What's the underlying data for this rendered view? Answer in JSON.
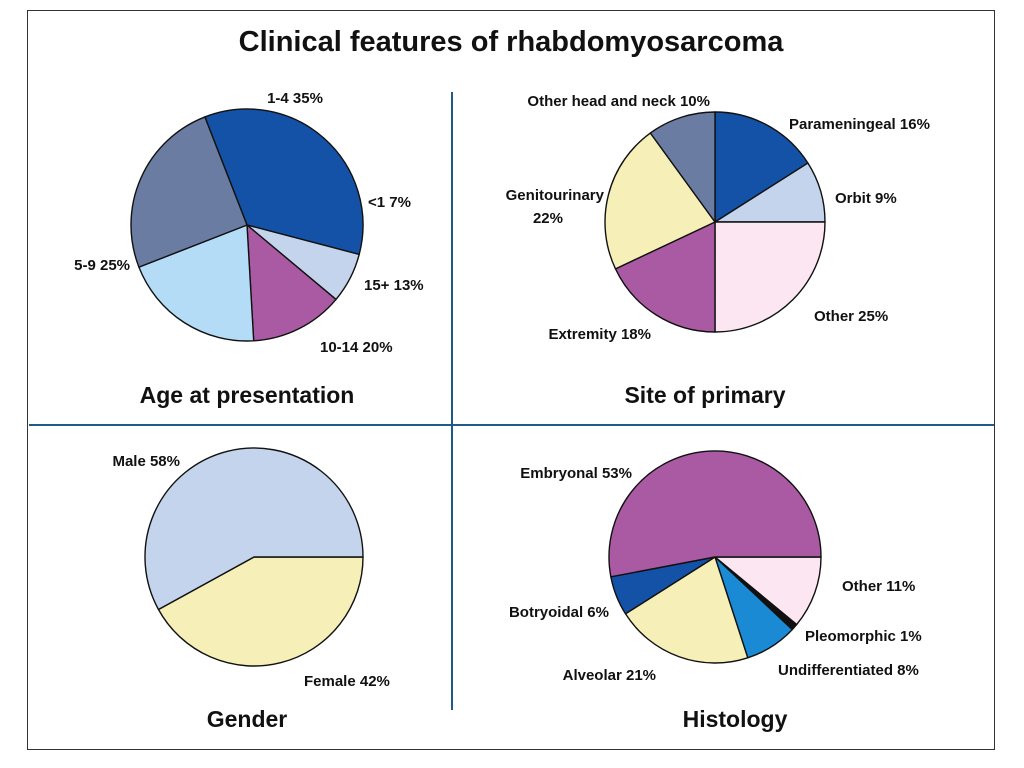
{
  "title": "Clinical features of rhabdomyosarcoma",
  "chart_data": [
    {
      "type": "pie",
      "title": "Age at presentation",
      "start_angle": -111.3,
      "slices": [
        {
          "label": "1-4",
          "value": 35,
          "text": "1-4  35%",
          "color": "#1452a8"
        },
        {
          "label": "<1",
          "value": 7,
          "text": "<1  7%",
          "color": "#c3d4ec"
        },
        {
          "label": "15+",
          "value": 13,
          "text": "15+  13%",
          "color": "#a95aa3"
        },
        {
          "label": "10-14",
          "value": 20,
          "text": "10-14  20%",
          "color": "#b4dcf6"
        },
        {
          "label": "5-9",
          "value": 25,
          "text": "5-9  25%",
          "color": "#6a7ca2"
        }
      ]
    },
    {
      "type": "pie",
      "title": "Site of primary",
      "start_angle": -90,
      "slices": [
        {
          "label": "Parameningeal",
          "value": 16,
          "text": "Parameningeal  16%",
          "color": "#1452a8"
        },
        {
          "label": "Orbit",
          "value": 9,
          "text": "Orbit 9%",
          "color": "#c3d4ec"
        },
        {
          "label": "Other",
          "value": 25,
          "text": "Other  25%",
          "color": "#fbe6f2"
        },
        {
          "label": "Extremity",
          "value": 18,
          "text": "Extremity  18%",
          "color": "#a95aa3"
        },
        {
          "label": "Genitourinary",
          "value": 22,
          "text": [
            "Genitourinary",
            "22%"
          ],
          "color": "#f6f0b8"
        },
        {
          "label": "Other head and neck",
          "value": 10,
          "text": "Other head and neck  10%",
          "color": "#6a7ca2"
        }
      ]
    },
    {
      "type": "pie",
      "title": "Gender",
      "start_angle": 0,
      "slices": [
        {
          "label": "Female",
          "value": 42,
          "text": "Female  42%",
          "color": "#f6f0b8"
        },
        {
          "label": "Male",
          "value": 58,
          "text": "Male  58%",
          "color": "#c3d4ec"
        }
      ]
    },
    {
      "type": "pie",
      "title": "Histology",
      "start_angle": 0,
      "slices": [
        {
          "label": "Other",
          "value": 11,
          "text": "Other  11%",
          "color": "#fbe6f2"
        },
        {
          "label": "Pleomorphic",
          "value": 1,
          "text": "Pleomorphic  1%",
          "color": "#111111"
        },
        {
          "label": "Undifferentiated",
          "value": 8,
          "text": "Undifferentiated  8%",
          "color": "#1a8ad4"
        },
        {
          "label": "Alveolar",
          "value": 21,
          "text": "Alveolar  21%",
          "color": "#f6f0b8"
        },
        {
          "label": "Botryoidal",
          "value": 6,
          "text": "Botryoidal  6%",
          "color": "#1452a8"
        },
        {
          "label": "Embryonal",
          "value": 53,
          "text": "Embryonal  53%",
          "color": "#a95aa3"
        }
      ]
    }
  ]
}
